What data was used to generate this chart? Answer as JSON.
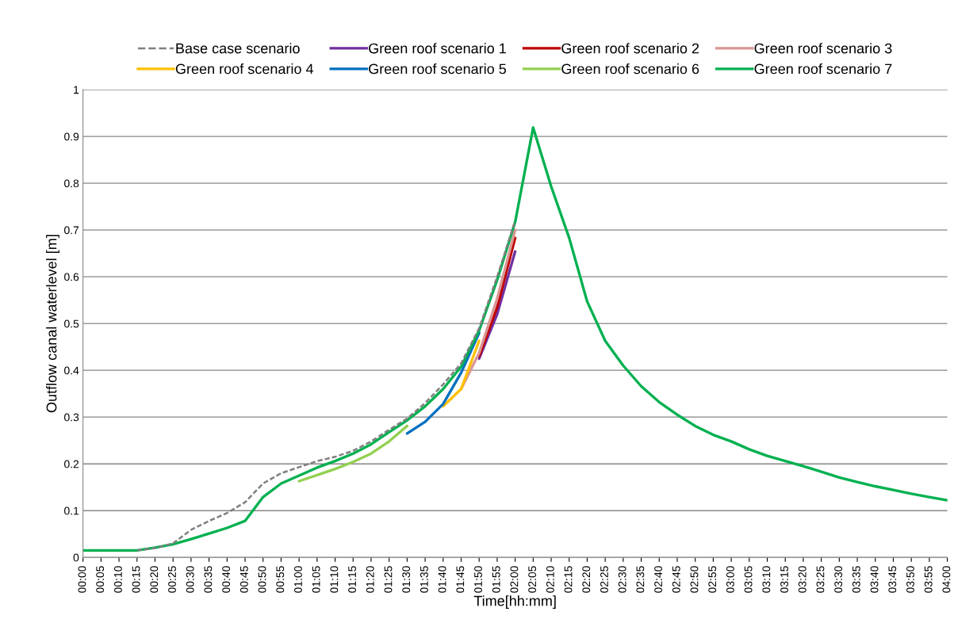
{
  "chart_data": {
    "type": "line",
    "xlabel": "Time[hh:mm]",
    "ylabel": "Outflow canal waterlevel [m]",
    "x": [
      0,
      0.0833,
      0.1667,
      0.25,
      0.3333,
      0.4167,
      0.5,
      0.5833,
      0.6667,
      0.75,
      0.8333,
      0.9167,
      1,
      1.0833,
      1.1667,
      1.25,
      1.3333,
      1.4167,
      1.5,
      1.5833,
      1.6667,
      1.75,
      1.8333,
      1.9167,
      2,
      2.0833,
      2.1667,
      2.25,
      2.3333,
      2.4167,
      2.5,
      2.5833,
      2.6667,
      2.75,
      2.8333,
      2.9167,
      3,
      3.0833,
      3.1667,
      3.25,
      3.3333,
      3.4167,
      3.5,
      3.5833,
      3.6667,
      3.75,
      3.8333,
      3.9167,
      4
    ],
    "xlim": [
      0,
      4
    ],
    "ylim": [
      0,
      1
    ],
    "yticks": [
      0,
      0.1,
      0.2,
      0.3,
      0.4,
      0.5,
      0.6,
      0.7,
      0.8,
      0.9,
      1
    ],
    "xticks": [
      {
        "value": 0,
        "label": "00:00"
      },
      {
        "value": 0.0833,
        "label": "00:05"
      },
      {
        "value": 0.1667,
        "label": "00:10"
      },
      {
        "value": 0.25,
        "label": "00:15"
      },
      {
        "value": 0.3333,
        "label": "00:20"
      },
      {
        "value": 0.4167,
        "label": "00:25"
      },
      {
        "value": 0.5,
        "label": "00:30"
      },
      {
        "value": 0.5833,
        "label": "00:35"
      },
      {
        "value": 0.6667,
        "label": "00:40"
      },
      {
        "value": 0.75,
        "label": "00:45"
      },
      {
        "value": 0.8333,
        "label": "00:50"
      },
      {
        "value": 0.9167,
        "label": "00:55"
      },
      {
        "value": 1,
        "label": "01:00"
      },
      {
        "value": 1.0833,
        "label": "01:05"
      },
      {
        "value": 1.1667,
        "label": "01:10"
      },
      {
        "value": 1.25,
        "label": "01:15"
      },
      {
        "value": 1.3333,
        "label": "01:20"
      },
      {
        "value": 1.4167,
        "label": "01:25"
      },
      {
        "value": 1.5,
        "label": "01:30"
      },
      {
        "value": 1.5833,
        "label": "01:35"
      },
      {
        "value": 1.6667,
        "label": "01:40"
      },
      {
        "value": 1.75,
        "label": "01:45"
      },
      {
        "value": 1.8333,
        "label": "01:50"
      },
      {
        "value": 1.9167,
        "label": "01:55"
      },
      {
        "value": 2,
        "label": "02:00"
      },
      {
        "value": 2.0833,
        "label": "02:05"
      },
      {
        "value": 2.1667,
        "label": "02:10"
      },
      {
        "value": 2.25,
        "label": "02:15"
      },
      {
        "value": 2.3333,
        "label": "02:20"
      },
      {
        "value": 2.4167,
        "label": "02:25"
      },
      {
        "value": 2.5,
        "label": "02:30"
      },
      {
        "value": 2.5833,
        "label": "02:35"
      },
      {
        "value": 2.6667,
        "label": "02:40"
      },
      {
        "value": 2.75,
        "label": "02:45"
      },
      {
        "value": 2.8333,
        "label": "02:50"
      },
      {
        "value": 2.9167,
        "label": "02:55"
      },
      {
        "value": 3,
        "label": "03:00"
      },
      {
        "value": 3.0833,
        "label": "03:05"
      },
      {
        "value": 3.1667,
        "label": "03:10"
      },
      {
        "value": 3.25,
        "label": "03:15"
      },
      {
        "value": 3.3333,
        "label": "03:20"
      },
      {
        "value": 3.4167,
        "label": "03:25"
      },
      {
        "value": 3.5,
        "label": "03:30"
      },
      {
        "value": 3.5833,
        "label": "03:35"
      },
      {
        "value": 3.6667,
        "label": "03:40"
      },
      {
        "value": 3.75,
        "label": "03:45"
      },
      {
        "value": 3.8333,
        "label": "03:50"
      },
      {
        "value": 3.9167,
        "label": "03:55"
      },
      {
        "value": 4,
        "label": "04:00"
      }
    ],
    "grid": "y",
    "legend": "top",
    "marker": "none",
    "series": [
      {
        "name": "Base case scenario",
        "color": "#808080",
        "line_style": "dashed",
        "values": [
          null,
          null,
          null,
          0.015,
          0.02,
          0.03,
          0.059,
          0.078,
          0.095,
          0.118,
          0.158,
          0.18,
          0.193,
          0.206,
          0.215,
          0.228,
          0.248,
          0.273,
          0.297,
          0.33,
          0.37,
          0.415,
          0.49,
          0.6,
          0.72,
          null,
          null,
          null,
          null,
          null,
          null,
          null,
          null,
          null,
          null,
          null,
          null,
          null,
          null,
          null,
          null,
          null,
          null,
          null,
          null,
          null,
          null,
          null,
          null
        ]
      },
      {
        "name": "Green roof scenario 1",
        "color": "#7030a0",
        "values": [
          null,
          null,
          null,
          null,
          null,
          null,
          null,
          null,
          null,
          null,
          null,
          null,
          null,
          null,
          null,
          null,
          null,
          null,
          null,
          null,
          null,
          null,
          0.425,
          0.52,
          0.654,
          null,
          null,
          null,
          null,
          null,
          null,
          null,
          null,
          null,
          null,
          null,
          null,
          null,
          null,
          null,
          null,
          null,
          null,
          null,
          null,
          null,
          null,
          null,
          null
        ]
      },
      {
        "name": "Green roof scenario 2",
        "color": "#c00000",
        "values": [
          null,
          null,
          null,
          null,
          null,
          null,
          null,
          null,
          null,
          null,
          null,
          null,
          null,
          null,
          null,
          null,
          null,
          null,
          null,
          null,
          null,
          null,
          0.43,
          0.535,
          0.683,
          null,
          null,
          null,
          null,
          null,
          null,
          null,
          null,
          null,
          null,
          null,
          null,
          null,
          null,
          null,
          null,
          null,
          null,
          null,
          null,
          null,
          null,
          null,
          null
        ]
      },
      {
        "name": "Green roof scenario 3",
        "color": "#d99694",
        "values": [
          null,
          null,
          null,
          null,
          null,
          null,
          null,
          null,
          null,
          null,
          null,
          null,
          null,
          null,
          null,
          null,
          null,
          null,
          null,
          null,
          null,
          0.36,
          0.437,
          0.553,
          0.7,
          null,
          null,
          null,
          null,
          null,
          null,
          null,
          null,
          null,
          null,
          null,
          null,
          null,
          null,
          null,
          null,
          null,
          null,
          null,
          null,
          null,
          null,
          null,
          null
        ]
      },
      {
        "name": "Green roof scenario 4",
        "color": "#ffc000",
        "values": [
          null,
          null,
          null,
          null,
          null,
          null,
          null,
          null,
          null,
          null,
          null,
          null,
          null,
          null,
          null,
          null,
          null,
          null,
          null,
          null,
          0.323,
          0.36,
          0.463,
          null,
          null,
          null,
          null,
          null,
          null,
          null,
          null,
          null,
          null,
          null,
          null,
          null,
          null,
          null,
          null,
          null,
          null,
          null,
          null,
          null,
          null,
          null,
          null,
          null,
          null
        ]
      },
      {
        "name": "Green roof scenario 5",
        "color": "#0070c0",
        "values": [
          null,
          null,
          null,
          null,
          null,
          null,
          null,
          null,
          null,
          null,
          null,
          null,
          null,
          null,
          null,
          null,
          null,
          null,
          0.265,
          0.29,
          0.328,
          0.395,
          0.48,
          null,
          null,
          null,
          null,
          null,
          null,
          null,
          null,
          null,
          null,
          null,
          null,
          null,
          null,
          null,
          null,
          null,
          null,
          null,
          null,
          null,
          null,
          null,
          null,
          null,
          null
        ]
      },
      {
        "name": "Green roof scenario 6",
        "color": "#92d050",
        "values": [
          null,
          null,
          null,
          null,
          null,
          null,
          null,
          null,
          null,
          null,
          null,
          null,
          0.163,
          0.176,
          0.189,
          0.204,
          0.222,
          0.248,
          0.281,
          null,
          null,
          null,
          null,
          null,
          null,
          null,
          null,
          null,
          null,
          null,
          null,
          null,
          null,
          null,
          null,
          null,
          null,
          null,
          null,
          null,
          null,
          null,
          null,
          null,
          null,
          null,
          null,
          null,
          null
        ]
      },
      {
        "name": "Green roof scenario 7",
        "color": "#00b050",
        "values": [
          0.015,
          0.015,
          0.015,
          0.015,
          0.021,
          0.028,
          0.039,
          0.051,
          0.063,
          0.078,
          0.129,
          0.158,
          0.175,
          0.192,
          0.206,
          0.222,
          0.242,
          0.268,
          0.293,
          0.323,
          0.36,
          0.408,
          0.485,
          0.593,
          0.717,
          0.919,
          0.793,
          0.683,
          0.547,
          0.463,
          0.41,
          0.366,
          0.332,
          0.305,
          0.281,
          0.262,
          0.248,
          0.231,
          0.217,
          0.206,
          0.195,
          0.183,
          0.171,
          0.161,
          0.152,
          0.144,
          0.136,
          0.129,
          0.122
        ]
      }
    ]
  }
}
